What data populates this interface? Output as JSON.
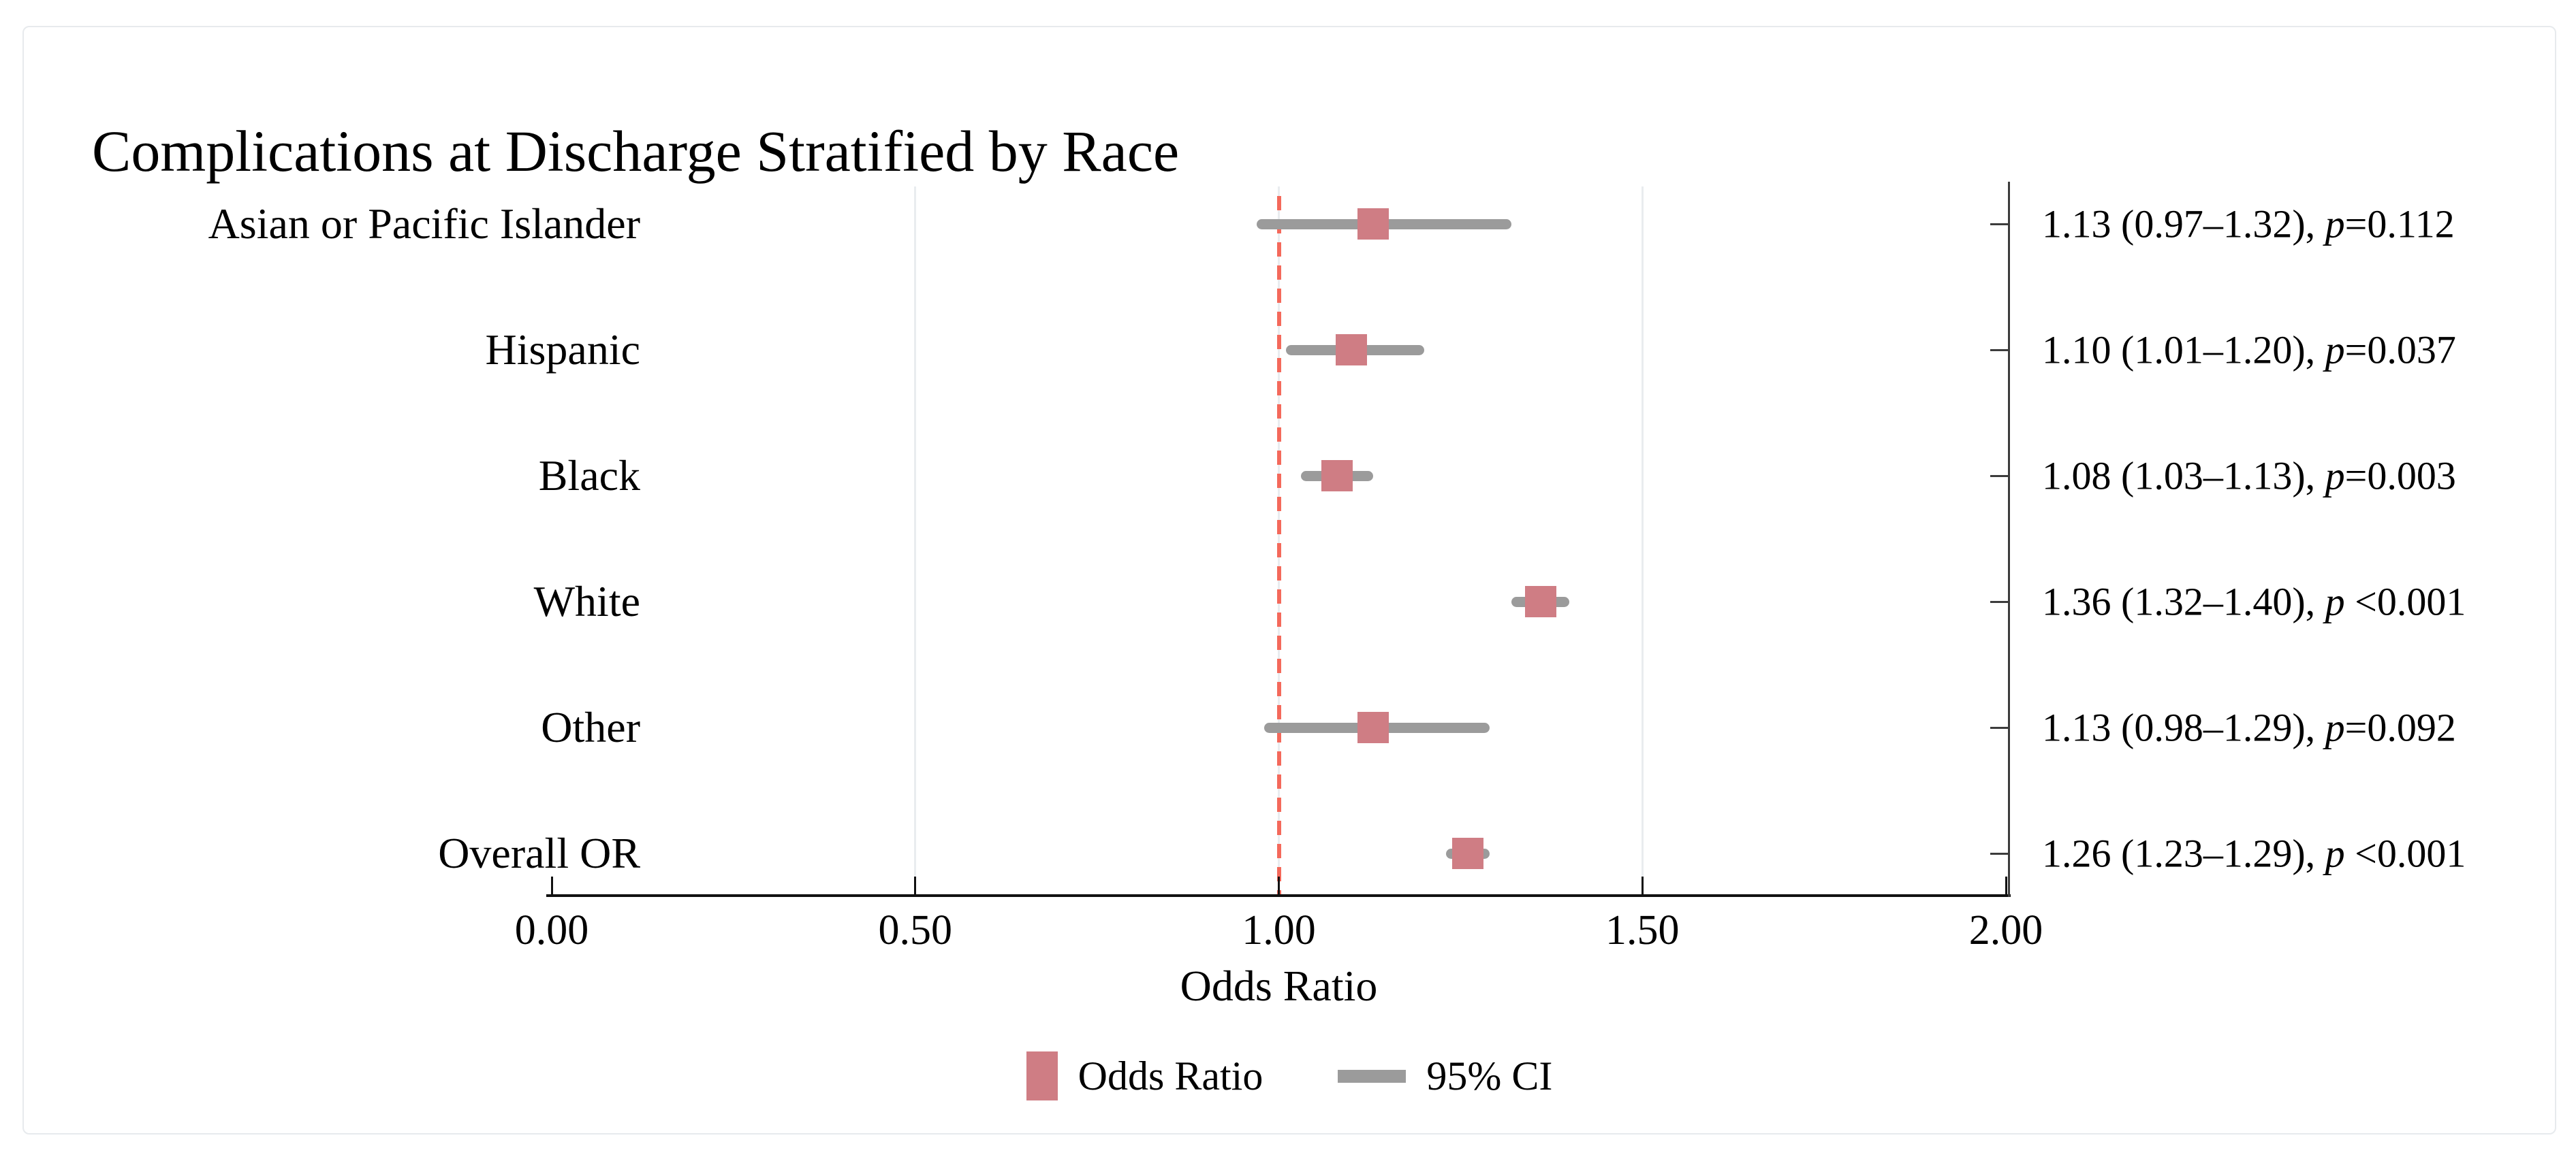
{
  "title": "Complications at Discharge Stratified by Race",
  "colors": {
    "marker": "#cf7d84",
    "ci_line": "#9b9b9b",
    "reference_line": "#f4695b",
    "gridline": "#e9ecef",
    "axis": "#111111"
  },
  "chart_data": {
    "type": "scatter",
    "subtype": "forest-plot",
    "title": "Complications at Discharge Stratified by Race",
    "xlabel": "Odds Ratio",
    "ylabel": "",
    "xlim": [
      0.0,
      2.0
    ],
    "grid": "vertical-light",
    "x_ticks": {
      "values": [
        0.0,
        0.5,
        1.0,
        1.5,
        2.0
      ],
      "labels": [
        "0.00",
        "0.50",
        "1.00",
        "1.50",
        "2.00"
      ]
    },
    "gridlines_at": [
      0.5,
      1.0,
      1.5
    ],
    "reference_line": 1.0,
    "legend_position": "bottom-center",
    "legend": [
      {
        "swatch": "square",
        "label": "Odds Ratio"
      },
      {
        "swatch": "line",
        "label": "95% CI"
      }
    ],
    "rows": [
      {
        "category": "Asian or Pacific Islander",
        "or": 1.13,
        "ci_low": 0.97,
        "ci_high": 1.32,
        "p": "0.112",
        "annotation_prefix": "1.13 (0.97–1.32), ",
        "p_symbol": "p",
        "annotation_suffix": "=0.112"
      },
      {
        "category": "Hispanic",
        "or": 1.1,
        "ci_low": 1.01,
        "ci_high": 1.2,
        "p": "0.037",
        "annotation_prefix": "1.10 (1.01–1.20), ",
        "p_symbol": "p",
        "annotation_suffix": "=0.037"
      },
      {
        "category": "Black",
        "or": 1.08,
        "ci_low": 1.03,
        "ci_high": 1.13,
        "p": "0.003",
        "annotation_prefix": "1.08 (1.03–1.13), ",
        "p_symbol": "p",
        "annotation_suffix": "=0.003"
      },
      {
        "category": "White",
        "or": 1.36,
        "ci_low": 1.32,
        "ci_high": 1.4,
        "p": "<0.001",
        "annotation_prefix": "1.36 (1.32–1.40), ",
        "p_symbol": "p",
        "annotation_suffix": " <0.001"
      },
      {
        "category": "Other",
        "or": 1.13,
        "ci_low": 0.98,
        "ci_high": 1.29,
        "p": "0.092",
        "annotation_prefix": "1.13 (0.98–1.29), ",
        "p_symbol": "p",
        "annotation_suffix": "=0.092"
      },
      {
        "category": "Overall OR",
        "or": 1.26,
        "ci_low": 1.23,
        "ci_high": 1.29,
        "p": "<0.001",
        "annotation_prefix": "1.26 (1.23–1.29), ",
        "p_symbol": "p",
        "annotation_suffix": " <0.001"
      }
    ]
  }
}
